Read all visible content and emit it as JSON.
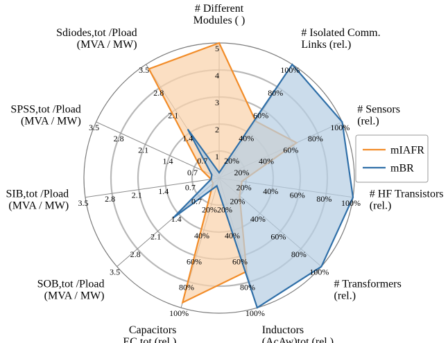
{
  "chart_data": {
    "type": "radar",
    "r_max": 1.0,
    "rings": [
      0.2,
      0.4,
      0.6,
      0.8,
      1.0
    ],
    "axes": [
      {
        "label": [
          "# Different",
          "Modules ( )"
        ],
        "ticks": [
          "0",
          "1",
          "2",
          "3",
          "4",
          "5"
        ]
      },
      {
        "label": [
          "# Isolated Comm.",
          "Links (rel.)"
        ],
        "ticks": [
          "0%",
          "20%",
          "40%",
          "60%",
          "80%",
          "100%"
        ]
      },
      {
        "label": [
          "# Sensors",
          "(rel.)"
        ],
        "ticks": [
          "0%",
          "20%",
          "40%",
          "60%",
          "80%",
          "100%"
        ]
      },
      {
        "label": [
          "# HF Transistors",
          "(rel.)"
        ],
        "ticks": [
          "0%",
          "20%",
          "40%",
          "60%",
          "80%",
          "100%"
        ]
      },
      {
        "label": [
          "# Transformers",
          "(rel.)"
        ],
        "ticks": [
          "0%",
          "20%",
          "40%",
          "60%",
          "80%",
          "100%"
        ]
      },
      {
        "label": [
          "Inductors",
          "(AcAw)tot (rel.)"
        ],
        "ticks": [
          "0%",
          "20%",
          "40%",
          "60%",
          "80%",
          "100%"
        ]
      },
      {
        "label": [
          "Capacitors",
          "EC,tot (rel.)"
        ],
        "ticks": [
          "0%",
          "20%",
          "40%",
          "60%",
          "80%",
          "100%"
        ]
      },
      {
        "label": [
          "SOB,tot /Pload",
          "(MVA / MW)"
        ],
        "ticks": [
          "0",
          "0.7",
          "1.4",
          "2.1",
          "2.8",
          "3.5"
        ]
      },
      {
        "label": [
          "SIB,tot /Pload",
          "(MVA / MW)"
        ],
        "ticks": [
          "0",
          "0.7",
          "1.4",
          "2.1",
          "2.8",
          "3.5"
        ]
      },
      {
        "label": [
          "SPSS,tot /Pload",
          "(MVA / MW)"
        ],
        "ticks": [
          "0",
          "0.7",
          "1.4",
          "2.1",
          "2.8",
          "3.5"
        ]
      },
      {
        "label": [
          "Sdiodes,tot /Pload",
          "(MVA / MW)"
        ],
        "ticks": [
          "0",
          "0.7",
          "1.4",
          "2.1",
          "2.8",
          "3.5"
        ]
      }
    ],
    "series": [
      {
        "name": "mIAFR",
        "color": "#f28c28",
        "fill": "#f9d2ac",
        "values": [
          1.0,
          0.5,
          0.63,
          0.17,
          0.2,
          0.72,
          0.96,
          0.06,
          0.06,
          0.14,
          0.96
        ]
      },
      {
        "name": "mBR",
        "color": "#2f6fa8",
        "fill": "#b7cfe3",
        "values": [
          0.04,
          1.0,
          1.0,
          1.0,
          1.0,
          1.0,
          0.06,
          0.45,
          0.06,
          0.06,
          0.43
        ]
      }
    ],
    "legend": "right",
    "grid": true
  }
}
